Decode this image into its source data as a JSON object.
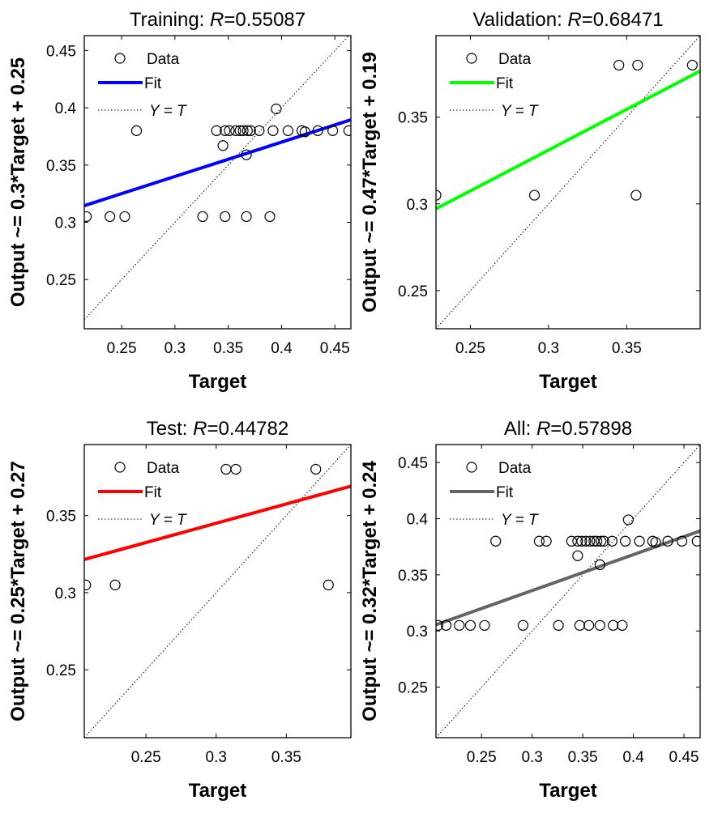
{
  "chart_data": [
    {
      "type": "scatter",
      "title_prefix": "Training: ",
      "title_r": "R",
      "title_value": "=0.55087",
      "xlabel": "Target",
      "ylabel": "Output ~= 0.3*Target + 0.25",
      "xlim": [
        0.215,
        0.465
      ],
      "ylim": [
        0.207,
        0.463
      ],
      "xticks": [
        0.25,
        0.3,
        0.35,
        0.4,
        0.45
      ],
      "xtick_labels": [
        "0.25",
        "0.3",
        "0.35",
        "0.4",
        "0.45"
      ],
      "yticks": [
        0.25,
        0.3,
        0.35,
        0.4,
        0.45
      ],
      "ytick_labels": [
        "0.25",
        "0.3",
        "0.35",
        "0.4",
        "0.45"
      ],
      "fit": {
        "slope": 0.3,
        "intercept": 0.25,
        "color": "#0000ff"
      },
      "legend": {
        "position": "top-left",
        "entries": [
          "Data",
          "Fit",
          "Y = T"
        ]
      },
      "points": [
        {
          "x": 0.217,
          "y": 0.305
        },
        {
          "x": 0.239,
          "y": 0.305
        },
        {
          "x": 0.253,
          "y": 0.305
        },
        {
          "x": 0.326,
          "y": 0.305
        },
        {
          "x": 0.347,
          "y": 0.305
        },
        {
          "x": 0.367,
          "y": 0.305
        },
        {
          "x": 0.389,
          "y": 0.305
        },
        {
          "x": 0.264,
          "y": 0.38
        },
        {
          "x": 0.339,
          "y": 0.38
        },
        {
          "x": 0.347,
          "y": 0.38
        },
        {
          "x": 0.351,
          "y": 0.38
        },
        {
          "x": 0.357,
          "y": 0.38
        },
        {
          "x": 0.361,
          "y": 0.38
        },
        {
          "x": 0.364,
          "y": 0.38
        },
        {
          "x": 0.368,
          "y": 0.38
        },
        {
          "x": 0.371,
          "y": 0.38
        },
        {
          "x": 0.379,
          "y": 0.38
        },
        {
          "x": 0.392,
          "y": 0.38
        },
        {
          "x": 0.406,
          "y": 0.38
        },
        {
          "x": 0.419,
          "y": 0.38
        },
        {
          "x": 0.422,
          "y": 0.379
        },
        {
          "x": 0.434,
          "y": 0.38
        },
        {
          "x": 0.448,
          "y": 0.38
        },
        {
          "x": 0.463,
          "y": 0.38
        },
        {
          "x": 0.345,
          "y": 0.367
        },
        {
          "x": 0.367,
          "y": 0.359
        },
        {
          "x": 0.395,
          "y": 0.399
        }
      ]
    },
    {
      "type": "scatter",
      "title_prefix": "Validation: ",
      "title_r": "R",
      "title_value": "=0.68471",
      "xlabel": "Target",
      "ylabel": "Output ~= 0.47*Target + 0.19",
      "xlim": [
        0.228,
        0.397
      ],
      "ylim": [
        0.228,
        0.397
      ],
      "xticks": [
        0.25,
        0.3,
        0.35
      ],
      "xtick_labels": [
        "0.25",
        "0.3",
        "0.35"
      ],
      "yticks": [
        0.25,
        0.3,
        0.35
      ],
      "ytick_labels": [
        "0.25",
        "0.3",
        "0.35"
      ],
      "fit": {
        "slope": 0.47,
        "intercept": 0.19,
        "color": "#00ff00"
      },
      "legend": {
        "position": "top-left",
        "entries": [
          "Data",
          "Fit",
          "Y = T"
        ]
      },
      "points": [
        {
          "x": 0.228,
          "y": 0.305
        },
        {
          "x": 0.291,
          "y": 0.305
        },
        {
          "x": 0.356,
          "y": 0.305
        },
        {
          "x": 0.345,
          "y": 0.38
        },
        {
          "x": 0.357,
          "y": 0.38
        },
        {
          "x": 0.392,
          "y": 0.38
        }
      ]
    },
    {
      "type": "scatter",
      "title_prefix": "Test: ",
      "title_r": "R",
      "title_value": "=0.44782",
      "xlabel": "Target",
      "ylabel": "Output ~= 0.25*Target + 0.27",
      "xlim": [
        0.206,
        0.396
      ],
      "ylim": [
        0.206,
        0.396
      ],
      "xticks": [
        0.25,
        0.3,
        0.35
      ],
      "xtick_labels": [
        "0.25",
        "0.3",
        "0.35"
      ],
      "yticks": [
        0.25,
        0.3,
        0.35
      ],
      "ytick_labels": [
        "0.25",
        "0.3",
        "0.35"
      ],
      "fit": {
        "slope": 0.25,
        "intercept": 0.27,
        "color": "#ff0000"
      },
      "legend": {
        "position": "top-left",
        "entries": [
          "Data",
          "Fit",
          "Y = T"
        ]
      },
      "points": [
        {
          "x": 0.207,
          "y": 0.305
        },
        {
          "x": 0.228,
          "y": 0.305
        },
        {
          "x": 0.307,
          "y": 0.38
        },
        {
          "x": 0.314,
          "y": 0.38
        },
        {
          "x": 0.371,
          "y": 0.38
        },
        {
          "x": 0.38,
          "y": 0.305
        }
      ]
    },
    {
      "type": "scatter",
      "title_prefix": "All: ",
      "title_r": "R",
      "title_value": "=0.57898",
      "xlabel": "Target",
      "ylabel": "Output ~= 0.32*Target + 0.24",
      "xlim": [
        0.205,
        0.466
      ],
      "ylim": [
        0.205,
        0.466
      ],
      "xticks": [
        0.25,
        0.3,
        0.35,
        0.4,
        0.45
      ],
      "xtick_labels": [
        "0.25",
        "0.3",
        "0.35",
        "0.4",
        "0.45"
      ],
      "yticks": [
        0.25,
        0.3,
        0.35,
        0.4,
        0.45
      ],
      "ytick_labels": [
        "0.25",
        "0.3",
        "0.35",
        "0.4",
        "0.45"
      ],
      "fit": {
        "slope": 0.32,
        "intercept": 0.24,
        "color": "#646464"
      },
      "legend": {
        "position": "top-left",
        "entries": [
          "Data",
          "Fit",
          "Y = T"
        ]
      },
      "points": [
        {
          "x": 0.207,
          "y": 0.305
        },
        {
          "x": 0.215,
          "y": 0.305
        },
        {
          "x": 0.228,
          "y": 0.305
        },
        {
          "x": 0.239,
          "y": 0.305
        },
        {
          "x": 0.253,
          "y": 0.305
        },
        {
          "x": 0.291,
          "y": 0.305
        },
        {
          "x": 0.326,
          "y": 0.305
        },
        {
          "x": 0.347,
          "y": 0.305
        },
        {
          "x": 0.356,
          "y": 0.305
        },
        {
          "x": 0.367,
          "y": 0.305
        },
        {
          "x": 0.38,
          "y": 0.305
        },
        {
          "x": 0.389,
          "y": 0.305
        },
        {
          "x": 0.264,
          "y": 0.38
        },
        {
          "x": 0.307,
          "y": 0.38
        },
        {
          "x": 0.314,
          "y": 0.38
        },
        {
          "x": 0.339,
          "y": 0.38
        },
        {
          "x": 0.345,
          "y": 0.38
        },
        {
          "x": 0.349,
          "y": 0.38
        },
        {
          "x": 0.353,
          "y": 0.38
        },
        {
          "x": 0.357,
          "y": 0.38
        },
        {
          "x": 0.361,
          "y": 0.38
        },
        {
          "x": 0.364,
          "y": 0.38
        },
        {
          "x": 0.368,
          "y": 0.38
        },
        {
          "x": 0.371,
          "y": 0.38
        },
        {
          "x": 0.379,
          "y": 0.38
        },
        {
          "x": 0.392,
          "y": 0.38
        },
        {
          "x": 0.406,
          "y": 0.38
        },
        {
          "x": 0.419,
          "y": 0.38
        },
        {
          "x": 0.422,
          "y": 0.379
        },
        {
          "x": 0.434,
          "y": 0.38
        },
        {
          "x": 0.448,
          "y": 0.38
        },
        {
          "x": 0.463,
          "y": 0.38
        },
        {
          "x": 0.345,
          "y": 0.367
        },
        {
          "x": 0.367,
          "y": 0.359
        },
        {
          "x": 0.395,
          "y": 0.399
        }
      ]
    }
  ]
}
